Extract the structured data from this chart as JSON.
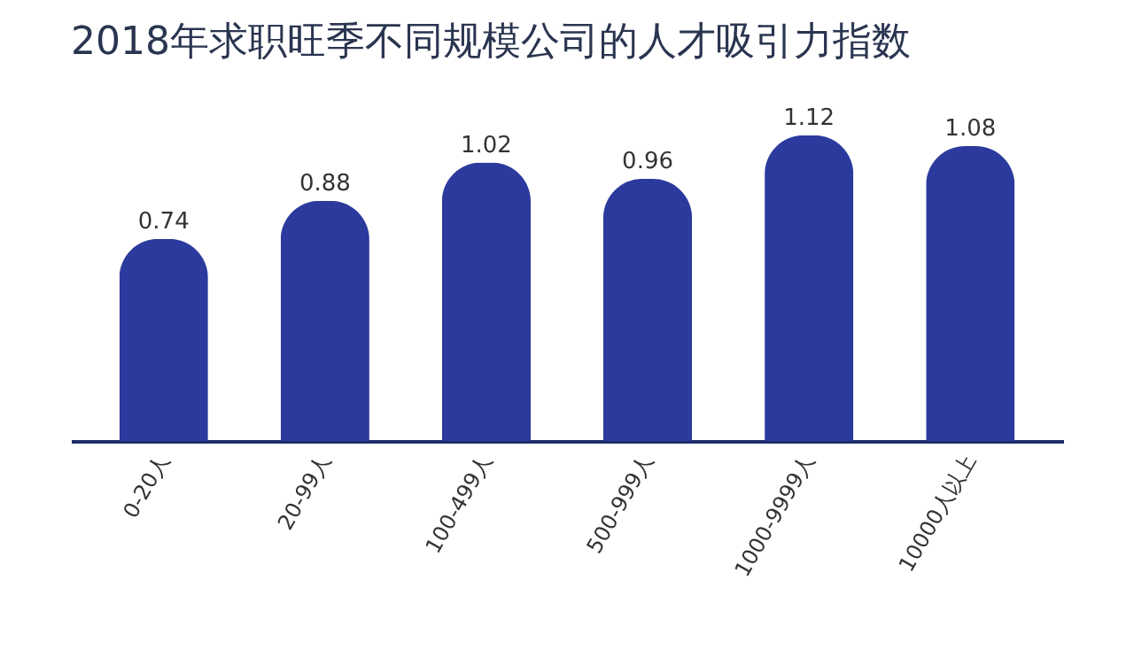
{
  "chart_data": {
    "type": "bar",
    "title": "2018年求职旺季不同规模公司的人才吸引力指数",
    "categories": [
      "0-20人",
      "20-99人",
      "100-499人",
      "500-999人",
      "1000-9999人",
      "10000人以上"
    ],
    "values": [
      0.74,
      0.88,
      1.02,
      0.96,
      1.12,
      1.08
    ],
    "color": "#2b3a9c",
    "data_labels": true
  }
}
